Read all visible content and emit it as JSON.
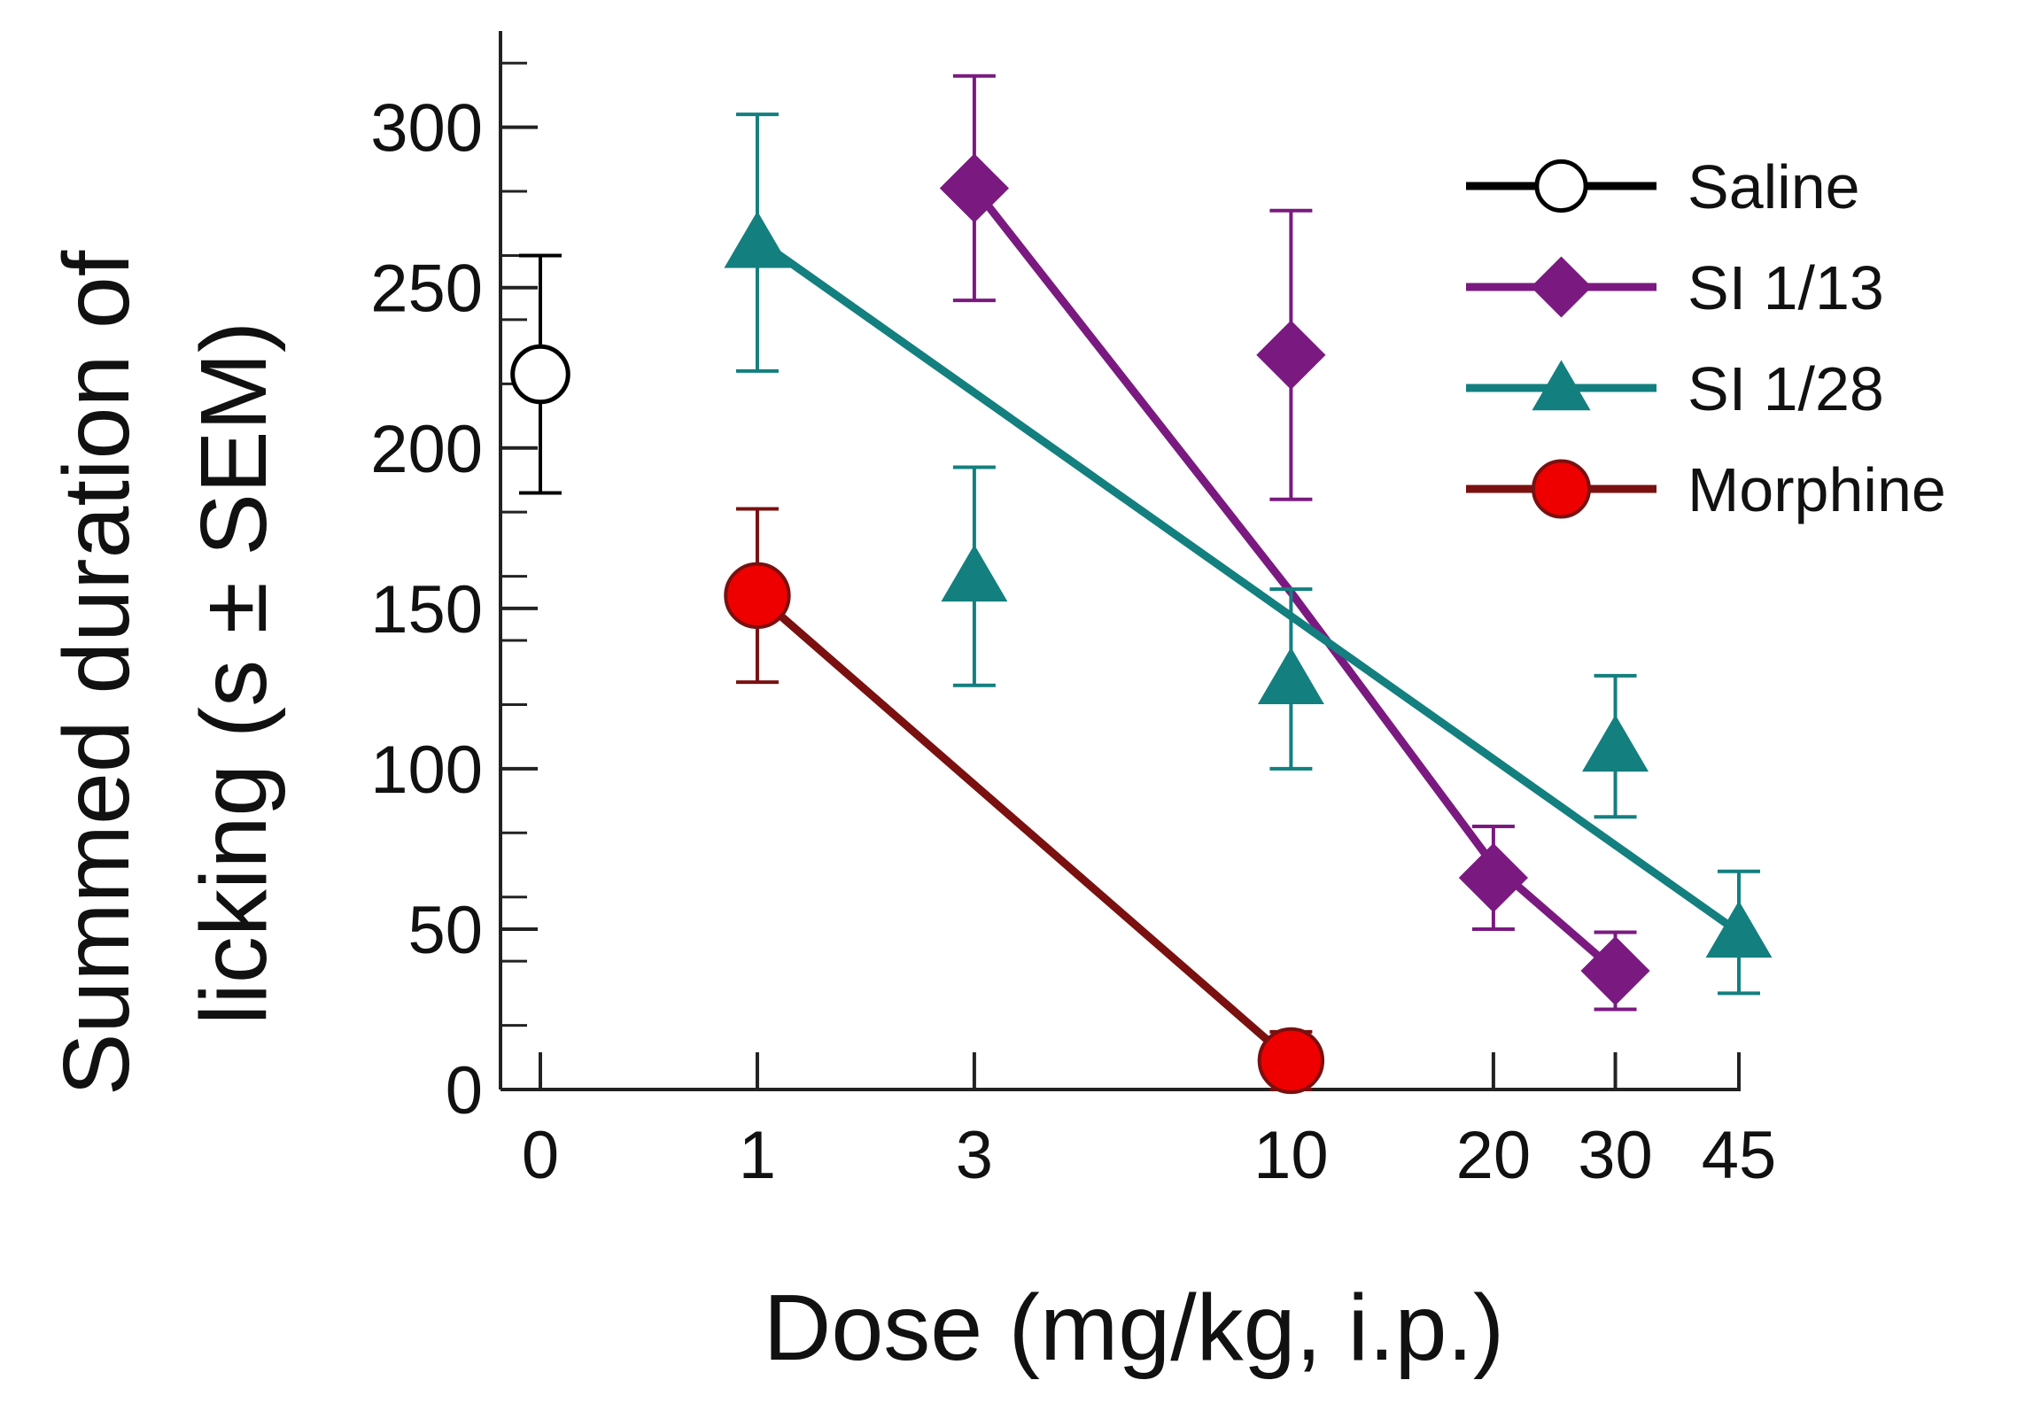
{
  "chart_data": {
    "type": "line",
    "title": "",
    "xlabel": "Dose (mg/kg, i.p.)",
    "ylabel_lines": [
      "Summed duration of",
      "licking (s ± SEM)"
    ],
    "x_scale": "log (dose + 1)",
    "x_ticks": [
      {
        "value": 0,
        "label": "0"
      },
      {
        "value": 1,
        "label": "1"
      },
      {
        "value": 3,
        "label": "3"
      },
      {
        "value": 10,
        "label": "10"
      },
      {
        "value": 20,
        "label": "20"
      },
      {
        "value": 30,
        "label": "30"
      },
      {
        "value": 45,
        "label": "45"
      }
    ],
    "ylim": [
      0,
      330
    ],
    "y_ticks": [
      0,
      50,
      100,
      150,
      200,
      250,
      300
    ],
    "y_minor_step": 20,
    "legend_position": "top-right",
    "series": [
      {
        "name": "Saline",
        "color": "#000000",
        "marker": "circle-open",
        "x": [
          0
        ],
        "y": [
          223
        ],
        "err": [
          37
        ],
        "fit": null
      },
      {
        "name": "SI 1/13",
        "color": "#7a1a80",
        "marker": "diamond",
        "x": [
          3,
          10,
          20,
          30
        ],
        "y": [
          281,
          229,
          66,
          37
        ],
        "err": [
          35,
          45,
          16,
          12
        ],
        "fit": {
          "x": [
            3,
            10,
            20,
            30
          ],
          "y": [
            281,
            155,
            70,
            37
          ]
        }
      },
      {
        "name": "SI 1/28",
        "color": "#137f7f",
        "marker": "triangle",
        "x": [
          1,
          3,
          10,
          30,
          45
        ],
        "y": [
          264,
          160,
          128,
          107,
          49
        ],
        "err": [
          40,
          34,
          28,
          22,
          19
        ],
        "fit": {
          "x": [
            1,
            45
          ],
          "y": [
            265,
            49
          ]
        }
      },
      {
        "name": "Morphine",
        "color": "#7a1010",
        "marker_fill": "#ee0000",
        "marker": "circle-filled",
        "x": [
          1,
          10
        ],
        "y": [
          154,
          9
        ],
        "err": [
          27,
          9
        ],
        "fit": {
          "x": [
            1,
            10
          ],
          "y": [
            154,
            9
          ]
        }
      }
    ]
  }
}
